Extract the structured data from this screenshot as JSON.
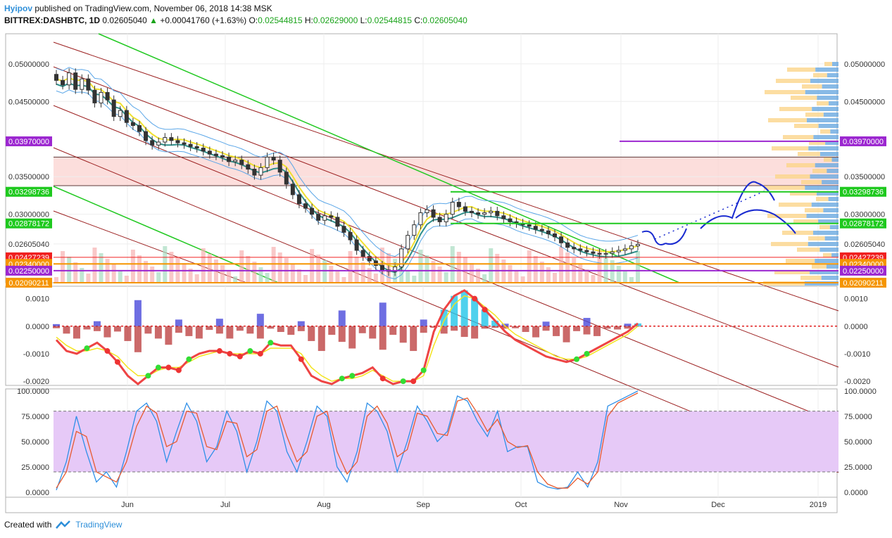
{
  "header": {
    "author": "Hyipov",
    "published": "published on TradingView.com, November 06, 2018 14:38 MSK"
  },
  "symbol_line": {
    "symbol": "BITTREX:DASHBTC, 1D",
    "last": "0.02605040",
    "arrow": "▲",
    "change": "+0.00041760 (+1.63%)",
    "o_label": "O:",
    "o": "0.02544815",
    "h_label": "H:",
    "h": "0.02629000",
    "l_label": "L:",
    "l": "0.02544815",
    "c_label": "C:",
    "c": "0.02605040"
  },
  "footer": {
    "created_with": "Created with",
    "brand": "TradingView"
  },
  "colors": {
    "purple": "#9c27d0",
    "green_level": "#1ec91e",
    "red_level": "#f02020",
    "orange_level": "#f59500",
    "dark_level": "#5c3a3a"
  },
  "chart_data": [
    {
      "type": "candlestick",
      "pane": "price",
      "x_ticks": [
        "Jun",
        "Jul",
        "Aug",
        "Sep",
        "Oct",
        "Nov",
        "Dec",
        "2019"
      ],
      "y_ticks": [
        "0.05000000",
        "0.04500000",
        "0.03500000",
        "0.03000000",
        "0.02605040"
      ],
      "ylim": [
        0.0209,
        0.054
      ],
      "close_series": [
        0.0478,
        0.0472,
        0.0488,
        0.0466,
        0.048,
        0.0465,
        0.0448,
        0.0462,
        0.0452,
        0.043,
        0.0438,
        0.0422,
        0.0418,
        0.041,
        0.0398,
        0.0392,
        0.0396,
        0.0402,
        0.0398,
        0.0395,
        0.0393,
        0.039,
        0.0388,
        0.0384,
        0.038,
        0.0378,
        0.0376,
        0.037,
        0.0372,
        0.0366,
        0.036,
        0.0352,
        0.0362,
        0.0376,
        0.0372,
        0.0356,
        0.034,
        0.0326,
        0.0314,
        0.0308,
        0.03,
        0.0292,
        0.0298,
        0.0296,
        0.0284,
        0.0276,
        0.0266,
        0.0252,
        0.0244,
        0.0238,
        0.0232,
        0.0226,
        0.0224,
        0.023,
        0.0254,
        0.0272,
        0.0286,
        0.0302,
        0.0306,
        0.0296,
        0.029,
        0.03,
        0.0316,
        0.031,
        0.0304,
        0.0302,
        0.03,
        0.0302,
        0.0304,
        0.0298,
        0.0294,
        0.029,
        0.0288,
        0.0286,
        0.0284,
        0.028,
        0.0278,
        0.0274,
        0.027,
        0.0262,
        0.0256,
        0.0254,
        0.0252,
        0.025,
        0.0248,
        0.0247,
        0.0248,
        0.025,
        0.0252,
        0.0254,
        0.0258,
        0.026
      ],
      "levels": [
        {
          "price": "0.03970000",
          "value": 0.0397,
          "color": "purple"
        },
        {
          "price": "0.03298736",
          "value": 0.03298736,
          "color": "green_level"
        },
        {
          "price": "0.02878172",
          "value": 0.02878172,
          "color": "green_level"
        },
        {
          "price": "0.02427239",
          "value": 0.02427239,
          "color": "red_level"
        },
        {
          "price": "0.02340000",
          "value": 0.0234,
          "color": "orange_level"
        },
        {
          "price": "0.02250000",
          "value": 0.0225,
          "color": "purple"
        },
        {
          "price": "0.02090211",
          "value": 0.02090211,
          "color": "orange_level"
        }
      ],
      "resistance_zone": [
        0.0338,
        0.0376
      ]
    },
    {
      "type": "area",
      "pane": "oscillator",
      "y_ticks": [
        "0.0010",
        "0.0000",
        "-0.0010",
        "-0.0020"
      ],
      "ylim": [
        -0.00215,
        0.00145
      ],
      "zero_line": 0.0,
      "fast": [
        -0.0005,
        -0.0009,
        -0.001,
        -0.0008,
        -0.0006,
        -0.0009,
        -0.0013,
        -0.0018,
        -0.0021,
        -0.0018,
        -0.0015,
        -0.0015,
        -0.0016,
        -0.0012,
        -0.001,
        -0.0009,
        -0.0009,
        -0.001,
        -0.0011,
        -0.0009,
        -0.001,
        -0.0006,
        -0.0007,
        -0.0007,
        -0.0012,
        -0.0018,
        -0.002,
        -0.0021,
        -0.0019,
        -0.0018,
        -0.0017,
        -0.0015,
        -0.0019,
        -0.0021,
        -0.002,
        -0.002,
        -0.0016,
        -0.0002,
        0.0006,
        0.0011,
        0.0013,
        0.001,
        0.0006,
        0.0002,
        -0.0002,
        -0.0005,
        -0.0007,
        -0.0009,
        -0.0011,
        -0.0012,
        -0.0013,
        -0.0012,
        -0.001,
        -0.0008,
        -0.0006,
        -0.0004,
        -0.0002,
        0.0001
      ],
      "signal": [
        -0.0004,
        -0.0007,
        -0.0009,
        -0.0009,
        -0.0008,
        -0.0009,
        -0.0011,
        -0.0015,
        -0.0018,
        -0.0018,
        -0.0016,
        -0.0015,
        -0.0015,
        -0.0013,
        -0.0011,
        -0.001,
        -0.0009,
        -0.001,
        -0.001,
        -0.001,
        -0.001,
        -0.0008,
        -0.0008,
        -0.0008,
        -0.001,
        -0.0015,
        -0.0018,
        -0.002,
        -0.0019,
        -0.0019,
        -0.0018,
        -0.0016,
        -0.0018,
        -0.002,
        -0.002,
        -0.002,
        -0.0018,
        -0.0007,
        0.0002,
        0.0008,
        0.0011,
        0.001,
        0.0007,
        0.0004,
        0.0,
        -0.0003,
        -0.0005,
        -0.0007,
        -0.0009,
        -0.0011,
        -0.0012,
        -0.0012,
        -0.0011,
        -0.0009,
        -0.0007,
        -0.0005,
        -0.0003,
        0.0
      ]
    },
    {
      "type": "line",
      "pane": "stochastic",
      "y_ticks": [
        "100.0000",
        "75.0000",
        "50.0000",
        "25.0000",
        "0.0000"
      ],
      "ylim": [
        -5,
        102
      ],
      "band": [
        20,
        80
      ],
      "k": [
        2,
        30,
        75,
        40,
        10,
        20,
        5,
        40,
        80,
        88,
        70,
        30,
        60,
        88,
        70,
        30,
        45,
        80,
        60,
        20,
        50,
        90,
        80,
        40,
        20,
        50,
        85,
        75,
        25,
        10,
        40,
        88,
        80,
        60,
        20,
        50,
        85,
        70,
        50,
        60,
        95,
        90,
        70,
        55,
        80,
        40,
        45,
        45,
        10,
        5,
        3,
        5,
        20,
        5,
        30,
        85,
        90,
        95,
        100
      ],
      "d": [
        4,
        20,
        60,
        55,
        20,
        15,
        10,
        30,
        65,
        85,
        78,
        45,
        50,
        80,
        78,
        45,
        42,
        70,
        68,
        35,
        42,
        80,
        85,
        55,
        30,
        40,
        75,
        80,
        40,
        18,
        30,
        75,
        85,
        68,
        35,
        42,
        78,
        75,
        58,
        56,
        90,
        93,
        78,
        60,
        72,
        50,
        44,
        46,
        20,
        8,
        4,
        4,
        14,
        8,
        20,
        75,
        88,
        93,
        98
      ]
    }
  ]
}
